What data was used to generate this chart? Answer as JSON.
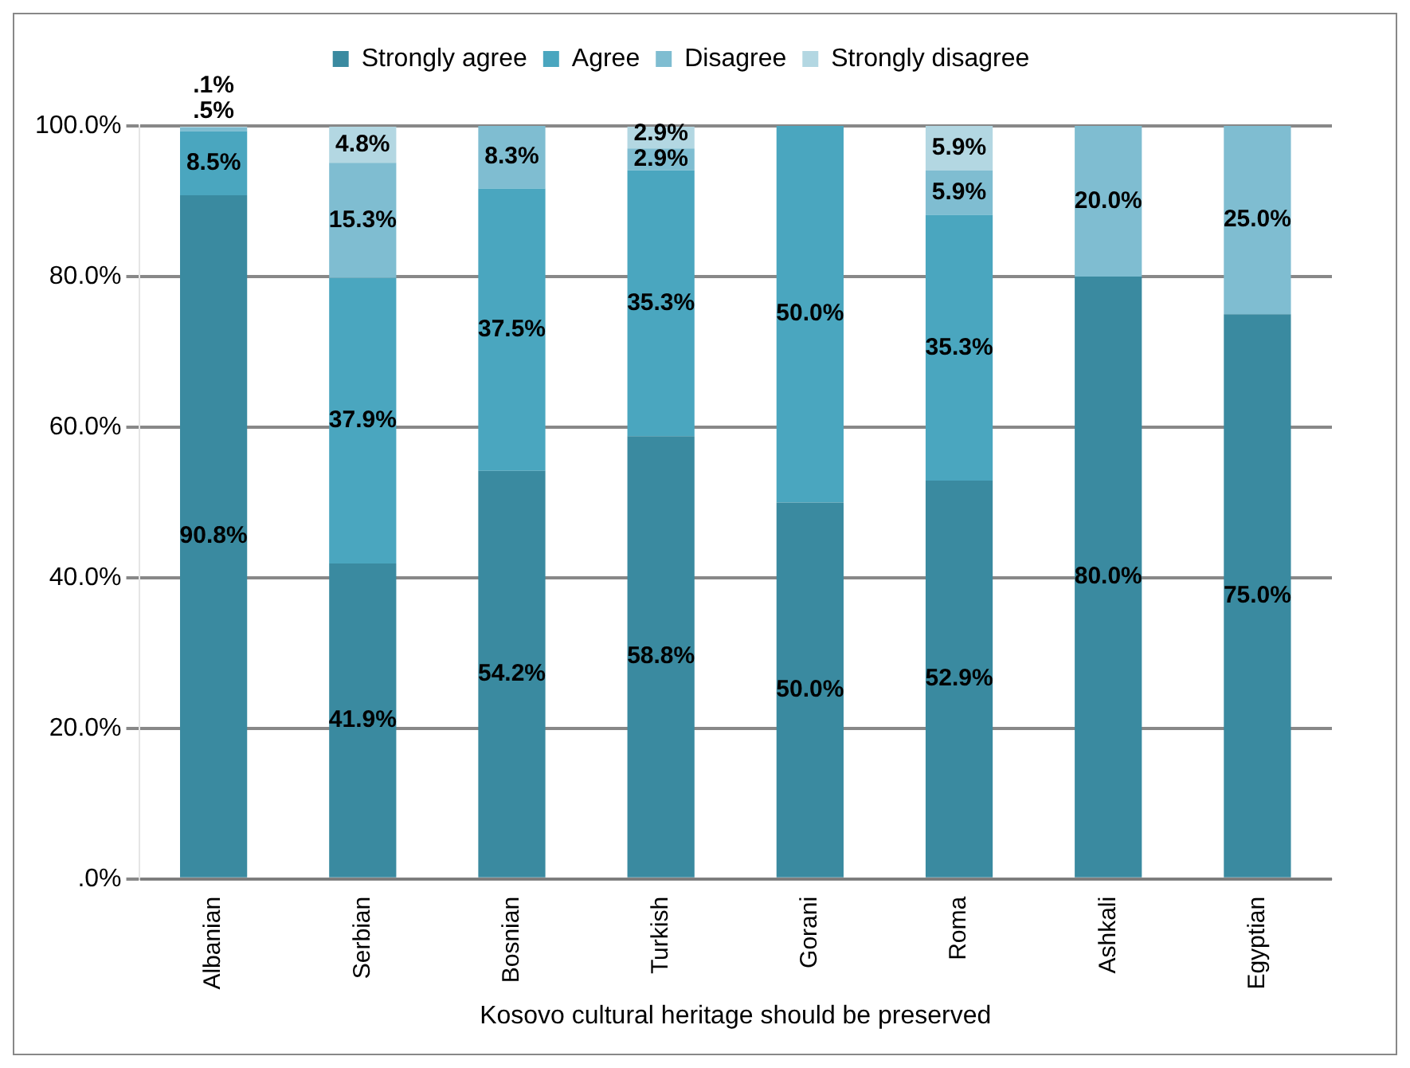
{
  "chart_data": {
    "type": "bar",
    "stacked": true,
    "xlabel": "Kosovo cultural heritage should be preserved",
    "categories": [
      "Albanian",
      "Serbian",
      "Bosnian",
      "Turkish",
      "Gorani",
      "Roma",
      "Ashkali",
      "Egyptian"
    ],
    "series": [
      {
        "name": "Strongly agree",
        "color": "#3a8aa0",
        "values": [
          90.8,
          41.9,
          54.2,
          58.8,
          50.0,
          52.9,
          80.0,
          75.0
        ],
        "value_labels": [
          "90.8%",
          "41.9%",
          "54.2%",
          "58.8%",
          "50.0%",
          "52.9%",
          "80.0%",
          "75.0%"
        ]
      },
      {
        "name": "Agree",
        "color": "#4aa6bf",
        "values": [
          8.5,
          37.9,
          37.5,
          35.3,
          50.0,
          35.3,
          null,
          null
        ],
        "value_labels": [
          "8.5%",
          "37.9%",
          "37.5%",
          "35.3%",
          "50.0%",
          "35.3%",
          null,
          null
        ]
      },
      {
        "name": "Disagree",
        "color": "#7fbdd1",
        "values": [
          0.5,
          15.3,
          8.3,
          2.9,
          null,
          5.9,
          20.0,
          25.0
        ],
        "value_labels": [
          ".5%",
          "15.3%",
          "8.3%",
          "2.9%",
          null,
          "5.9%",
          "20.0%",
          "25.0%"
        ]
      },
      {
        "name": "Strongly disagree",
        "color": "#b3d7e2",
        "values": [
          0.1,
          4.8,
          null,
          2.9,
          null,
          5.9,
          null,
          null
        ],
        "value_labels": [
          ".1%",
          "4.8%",
          null,
          "2.9%",
          null,
          "5.9%",
          null,
          null
        ]
      }
    ],
    "ylim": [
      0,
      100
    ],
    "yticks": [
      {
        "value": 0,
        "label": ".0%"
      },
      {
        "value": 20,
        "label": "20.0%"
      },
      {
        "value": 40,
        "label": "40.0%"
      },
      {
        "value": 60,
        "label": "60.0%"
      },
      {
        "value": 80,
        "label": "80.0%"
      },
      {
        "value": 100,
        "label": "100.0%"
      }
    ],
    "grid": "y",
    "legend": "top"
  }
}
